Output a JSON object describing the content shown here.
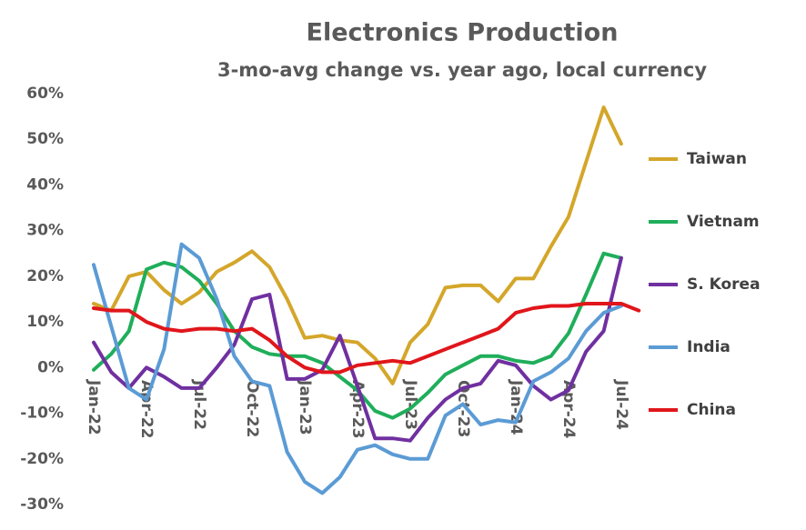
{
  "chart_data": {
    "type": "line",
    "title": "Electronics Production",
    "subtitle": "3-mo-avg change vs. year ago, local currency",
    "categories": [
      "Jan-22",
      null,
      null,
      "Apr-22",
      null,
      null,
      "Jul-22",
      null,
      null,
      "Oct-22",
      null,
      null,
      "Jan-23",
      null,
      null,
      "Apr-23",
      null,
      null,
      "Jul-23",
      null,
      null,
      "Oct-23",
      null,
      null,
      "Jan-24",
      null,
      null,
      "Apr-24",
      null,
      null,
      "Jul-24",
      null
    ],
    "ylim": [
      -30,
      60
    ],
    "yticks": [
      {
        "value": -30,
        "label": "-30%"
      },
      {
        "value": -20,
        "label": "-20%"
      },
      {
        "value": -10,
        "label": "-10%"
      },
      {
        "value": 0,
        "label": "0%"
      },
      {
        "value": 10,
        "label": "10%"
      },
      {
        "value": 20,
        "label": "20%"
      },
      {
        "value": 30,
        "label": "30%"
      },
      {
        "value": 40,
        "label": "40%"
      },
      {
        "value": 50,
        "label": "50%"
      },
      {
        "value": 60,
        "label": "60%"
      }
    ],
    "legend": "right",
    "series": [
      {
        "name": "Taiwan",
        "color": "#d4a62a",
        "values": [
          14,
          12.5,
          20,
          21,
          17,
          14,
          16.5,
          21,
          23,
          25.5,
          22,
          15,
          6.5,
          7,
          6,
          5.5,
          2,
          -3.5,
          5.5,
          9.5,
          17.5,
          18,
          18,
          14.5,
          19.5,
          19.5,
          26.5,
          33,
          45,
          57,
          49,
          null
        ]
      },
      {
        "name": "Vietnam",
        "color": "#1fae5a",
        "values": [
          -0.5,
          3,
          8,
          21.5,
          23,
          22,
          19,
          14,
          8,
          4.5,
          3,
          2.5,
          2.5,
          1,
          -2,
          -5,
          -9.5,
          -11,
          -9,
          -5.5,
          -1.5,
          0.5,
          2.5,
          2.5,
          1.5,
          1,
          2.5,
          7.5,
          16,
          25,
          24,
          null
        ]
      },
      {
        "name": "S. Korea",
        "color": "#7030a0",
        "values": [
          5.5,
          -1,
          -4.5,
          0,
          -2,
          -4.5,
          -4.5,
          0,
          5,
          15,
          16,
          -2.5,
          -2.5,
          -0.5,
          7,
          -4,
          -15.5,
          -15.5,
          -16,
          -11,
          -7,
          -4.5,
          -3.5,
          1.5,
          0.5,
          -4,
          -7,
          -5,
          3.5,
          8,
          24,
          null
        ]
      },
      {
        "name": "India",
        "color": "#5b9bd5",
        "values": [
          22.5,
          9,
          -4.5,
          -7,
          4,
          27,
          24,
          15,
          2.5,
          -3,
          -4,
          -18.5,
          -25,
          -27.5,
          -24,
          -18,
          -17,
          -19,
          -20,
          -20,
          -10.5,
          -8,
          -12.5,
          -11.5,
          -12,
          -3,
          -1,
          2,
          8,
          12,
          13.5,
          null
        ]
      },
      {
        "name": "China",
        "color": "#e0161b",
        "values": [
          13,
          12.5,
          12.5,
          10,
          8.5,
          8,
          8.5,
          8.5,
          8,
          8.5,
          6,
          2.5,
          0,
          -1,
          -1,
          0.5,
          1,
          1.5,
          1,
          2.5,
          4,
          5.5,
          7,
          8.5,
          12,
          13,
          13.5,
          13.5,
          14,
          14,
          14,
          12.5
        ]
      }
    ]
  }
}
